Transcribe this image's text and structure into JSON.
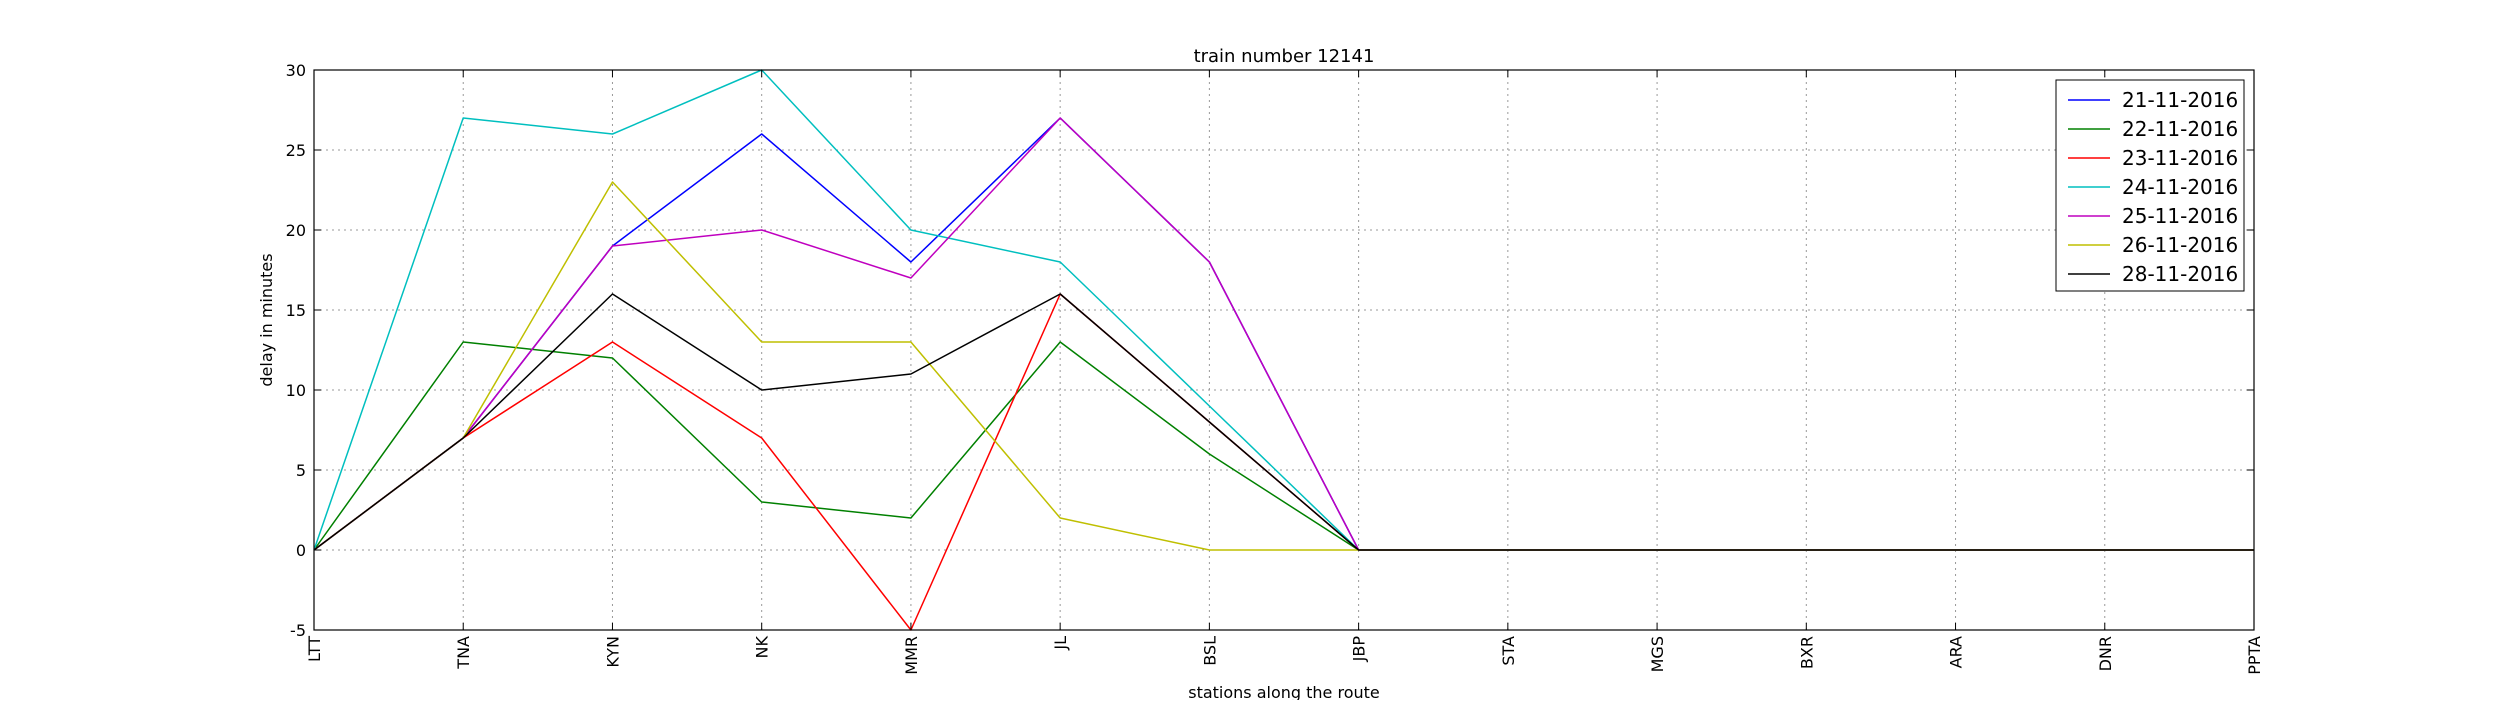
{
  "chart_data": {
    "type": "line",
    "title": "train number 12141",
    "xlabel": "stations along the route",
    "ylabel": "delay in minutes",
    "categories": [
      "LTT",
      "TNA",
      "KYN",
      "NK",
      "MMR",
      "JL",
      "BSL",
      "JBP",
      "STA",
      "MGS",
      "BXR",
      "ARA",
      "DNR",
      "PPTA"
    ],
    "ylim": [
      -5,
      30
    ],
    "yticks": [
      -5,
      0,
      5,
      10,
      15,
      20,
      25,
      30
    ],
    "grid": true,
    "legend_position": "top-right",
    "series": [
      {
        "name": "21-11-2016",
        "color": "#0000ff",
        "values": [
          0,
          7,
          19,
          26,
          18,
          27,
          18,
          0,
          0,
          0,
          0,
          0,
          0,
          0
        ]
      },
      {
        "name": "22-11-2016",
        "color": "#008000",
        "values": [
          0,
          13,
          12,
          3,
          2,
          13,
          6,
          0,
          0,
          0,
          0,
          0,
          0,
          0
        ]
      },
      {
        "name": "23-11-2016",
        "color": "#ff0000",
        "values": [
          0,
          7,
          13,
          7,
          -5,
          16,
          8,
          0,
          0,
          0,
          0,
          0,
          0,
          0
        ]
      },
      {
        "name": "24-11-2016",
        "color": "#00bfbf",
        "values": [
          0,
          27,
          26,
          30,
          20,
          18,
          9,
          0,
          0,
          0,
          0,
          0,
          0,
          0
        ]
      },
      {
        "name": "25-11-2016",
        "color": "#bf00bf",
        "values": [
          0,
          7,
          19,
          20,
          17,
          27,
          18,
          0,
          0,
          0,
          0,
          0,
          0,
          0
        ]
      },
      {
        "name": "26-11-2016",
        "color": "#bfbf00",
        "values": [
          0,
          7,
          23,
          13,
          13,
          2,
          0,
          0,
          0,
          0,
          0,
          0,
          0,
          0
        ]
      },
      {
        "name": "28-11-2016",
        "color": "#000000",
        "values": [
          0,
          7,
          16,
          10,
          11,
          16,
          8,
          0,
          0,
          0,
          0,
          0,
          0,
          0
        ]
      }
    ]
  }
}
